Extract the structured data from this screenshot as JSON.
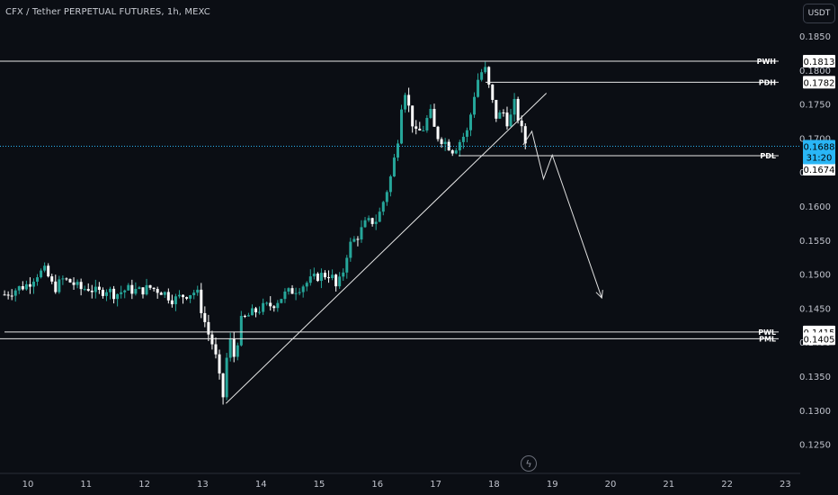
{
  "header": {
    "title": "CFX / Tether PERPETUAL FUTURES, 1h, MEXC",
    "currency_button": "USDT"
  },
  "chart_data": {
    "type": "candlestick",
    "y_ticks": [
      "0.1850",
      "0.1800",
      "0.1750",
      "0.1700",
      "0.1650",
      "0.1600",
      "0.1550",
      "0.1500",
      "0.1450",
      "0.1400",
      "0.1350",
      "0.1300",
      "0.1250"
    ],
    "x_ticks": [
      "10",
      "11",
      "12",
      "13",
      "14",
      "15",
      "16",
      "17",
      "18",
      "19",
      "20",
      "21",
      "22",
      "23"
    ],
    "ylim": [
      0.1215,
      0.188
    ],
    "grid": false,
    "colors": {
      "up": "#26a69a",
      "down": "#ffffff",
      "line": "#ffffff",
      "current_price": "#29b6f6",
      "background": "#0b0e14"
    },
    "levels": [
      {
        "tag": "PWH",
        "value": "0.1813"
      },
      {
        "tag": "PDH",
        "value": "0.1782"
      },
      {
        "tag": "PDL",
        "value": "0.1674"
      },
      {
        "tag": "PWL",
        "value": "0.1415"
      },
      {
        "tag": "PML",
        "value": "0.1405"
      }
    ],
    "current_price": {
      "value": "0.1688",
      "countdown": "31:20"
    },
    "trendline": {
      "from": {
        "x": 13.4,
        "y": 0.131
      },
      "to": {
        "x": 18.9,
        "y": 0.1766
      }
    },
    "projection_path": [
      {
        "x": 18.5,
        "y": 0.169
      },
      {
        "x": 18.65,
        "y": 0.171
      },
      {
        "x": 18.85,
        "y": 0.164
      },
      {
        "x": 19.0,
        "y": 0.1675
      },
      {
        "x": 19.85,
        "y": 0.1465
      }
    ],
    "series": [
      {
        "x": 9.6,
        "y": 0.147
      },
      {
        "x": 9.8,
        "y": 0.1478
      },
      {
        "x": 10.0,
        "y": 0.1485
      },
      {
        "x": 10.15,
        "y": 0.15
      },
      {
        "x": 10.3,
        "y": 0.1505
      },
      {
        "x": 10.45,
        "y": 0.1478
      },
      {
        "x": 10.6,
        "y": 0.1492
      },
      {
        "x": 10.75,
        "y": 0.1488
      },
      {
        "x": 10.9,
        "y": 0.1478
      },
      {
        "x": 11.05,
        "y": 0.148
      },
      {
        "x": 11.2,
        "y": 0.1472
      },
      {
        "x": 11.35,
        "y": 0.1478
      },
      {
        "x": 11.5,
        "y": 0.147
      },
      {
        "x": 11.7,
        "y": 0.1478
      },
      {
        "x": 11.9,
        "y": 0.1475
      },
      {
        "x": 12.1,
        "y": 0.148
      },
      {
        "x": 12.3,
        "y": 0.1475
      },
      {
        "x": 12.5,
        "y": 0.1462
      },
      {
        "x": 12.7,
        "y": 0.147
      },
      {
        "x": 12.9,
        "y": 0.1475
      },
      {
        "x": 13.0,
        "y": 0.144
      },
      {
        "x": 13.1,
        "y": 0.1412
      },
      {
        "x": 13.2,
        "y": 0.139
      },
      {
        "x": 13.3,
        "y": 0.134
      },
      {
        "x": 13.35,
        "y": 0.132
      },
      {
        "x": 13.45,
        "y": 0.141
      },
      {
        "x": 13.55,
        "y": 0.1375
      },
      {
        "x": 13.65,
        "y": 0.143
      },
      {
        "x": 13.8,
        "y": 0.144
      },
      {
        "x": 14.0,
        "y": 0.145
      },
      {
        "x": 14.2,
        "y": 0.1455
      },
      {
        "x": 14.4,
        "y": 0.147
      },
      {
        "x": 14.6,
        "y": 0.1478
      },
      {
        "x": 14.8,
        "y": 0.1488
      },
      {
        "x": 15.0,
        "y": 0.1498
      },
      {
        "x": 15.2,
        "y": 0.15
      },
      {
        "x": 15.3,
        "y": 0.1478
      },
      {
        "x": 15.4,
        "y": 0.15
      },
      {
        "x": 15.5,
        "y": 0.154
      },
      {
        "x": 15.65,
        "y": 0.1555
      },
      {
        "x": 15.8,
        "y": 0.1575
      },
      {
        "x": 16.0,
        "y": 0.158
      },
      {
        "x": 16.15,
        "y": 0.162
      },
      {
        "x": 16.25,
        "y": 0.165
      },
      {
        "x": 16.35,
        "y": 0.17
      },
      {
        "x": 16.45,
        "y": 0.178
      },
      {
        "x": 16.55,
        "y": 0.174
      },
      {
        "x": 16.65,
        "y": 0.1705
      },
      {
        "x": 16.8,
        "y": 0.1715
      },
      {
        "x": 16.9,
        "y": 0.174
      },
      {
        "x": 17.0,
        "y": 0.1705
      },
      {
        "x": 17.15,
        "y": 0.1695
      },
      {
        "x": 17.3,
        "y": 0.1682
      },
      {
        "x": 17.45,
        "y": 0.17
      },
      {
        "x": 17.55,
        "y": 0.171
      },
      {
        "x": 17.65,
        "y": 0.176
      },
      {
        "x": 17.75,
        "y": 0.1795
      },
      {
        "x": 17.85,
        "y": 0.18
      },
      {
        "x": 17.95,
        "y": 0.176
      },
      {
        "x": 18.05,
        "y": 0.1728
      },
      {
        "x": 18.15,
        "y": 0.174
      },
      {
        "x": 18.25,
        "y": 0.172
      },
      {
        "x": 18.35,
        "y": 0.175
      },
      {
        "x": 18.45,
        "y": 0.1718
      },
      {
        "x": 18.55,
        "y": 0.169
      }
    ]
  }
}
